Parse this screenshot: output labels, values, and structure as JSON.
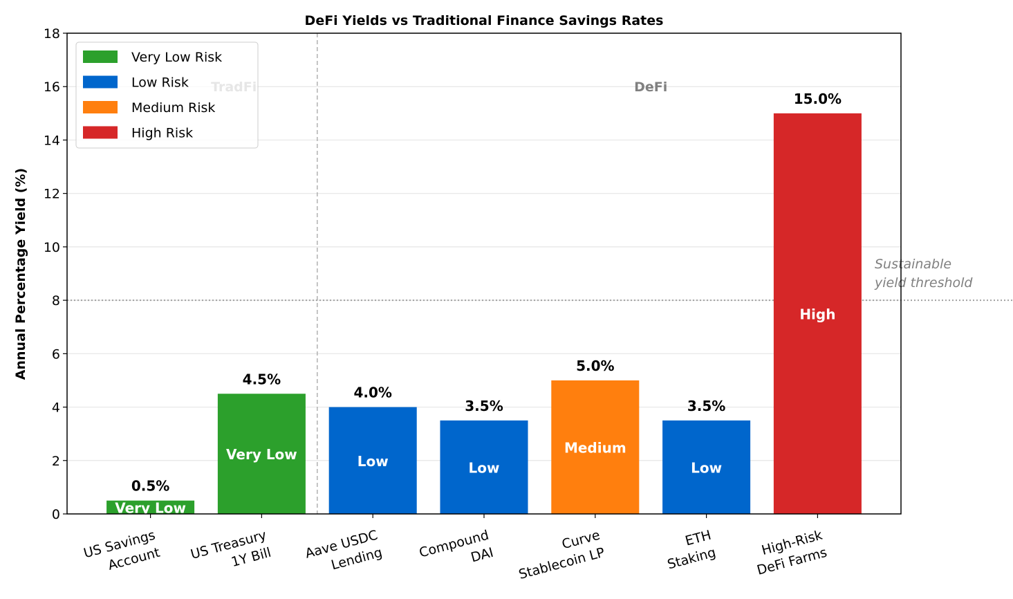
{
  "chart_data": {
    "type": "bar",
    "title": "DeFi Yields vs Traditional Finance Savings Rates",
    "xlabel": "",
    "ylabel": "Annual Percentage Yield (%)",
    "ylim": [
      0,
      18
    ],
    "yticks": [
      "0",
      "2",
      "4",
      "6",
      "8",
      "10",
      "12",
      "14",
      "16",
      "18"
    ],
    "grid": "y",
    "categories": [
      [
        "US Savings",
        "Account"
      ],
      [
        "US Treasury",
        "1Y Bill"
      ],
      [
        "Aave USDC",
        "Lending"
      ],
      [
        "Compound",
        "DAI"
      ],
      [
        "Curve",
        "Stablecoin LP"
      ],
      [
        "ETH",
        "Staking"
      ],
      [
        "High-Risk",
        "DeFi Farms"
      ]
    ],
    "values": [
      0.5,
      4.5,
      4.0,
      3.5,
      5.0,
      3.5,
      15.0
    ],
    "value_labels": [
      "0.5%",
      "4.5%",
      "4.0%",
      "3.5%",
      "5.0%",
      "3.5%",
      "15.0%"
    ],
    "risk_labels": [
      "Very Low",
      "Very Low",
      "Low",
      "Low",
      "Medium",
      "Low",
      "High"
    ],
    "risk_colors": {
      "Very Low": "#2ca02c",
      "Low": "#0066cc",
      "Medium": "#ff7f0e",
      "High": "#d62728"
    },
    "legend": {
      "position": "upper-left",
      "entries": [
        {
          "label": "Very Low Risk",
          "color": "#2ca02c"
        },
        {
          "label": "Low Risk",
          "color": "#0066cc"
        },
        {
          "label": "Medium Risk",
          "color": "#ff7f0e"
        },
        {
          "label": "High Risk",
          "color": "#d62728"
        }
      ]
    },
    "section_labels": [
      {
        "text": "TradFi",
        "x": 0.75,
        "y": 16
      },
      {
        "text": "DeFi",
        "x": 4.5,
        "y": 16
      }
    ],
    "section_divider_x": 1.5,
    "threshold": {
      "y": 8,
      "label": [
        "Sustainable",
        "yield threshold"
      ]
    }
  }
}
